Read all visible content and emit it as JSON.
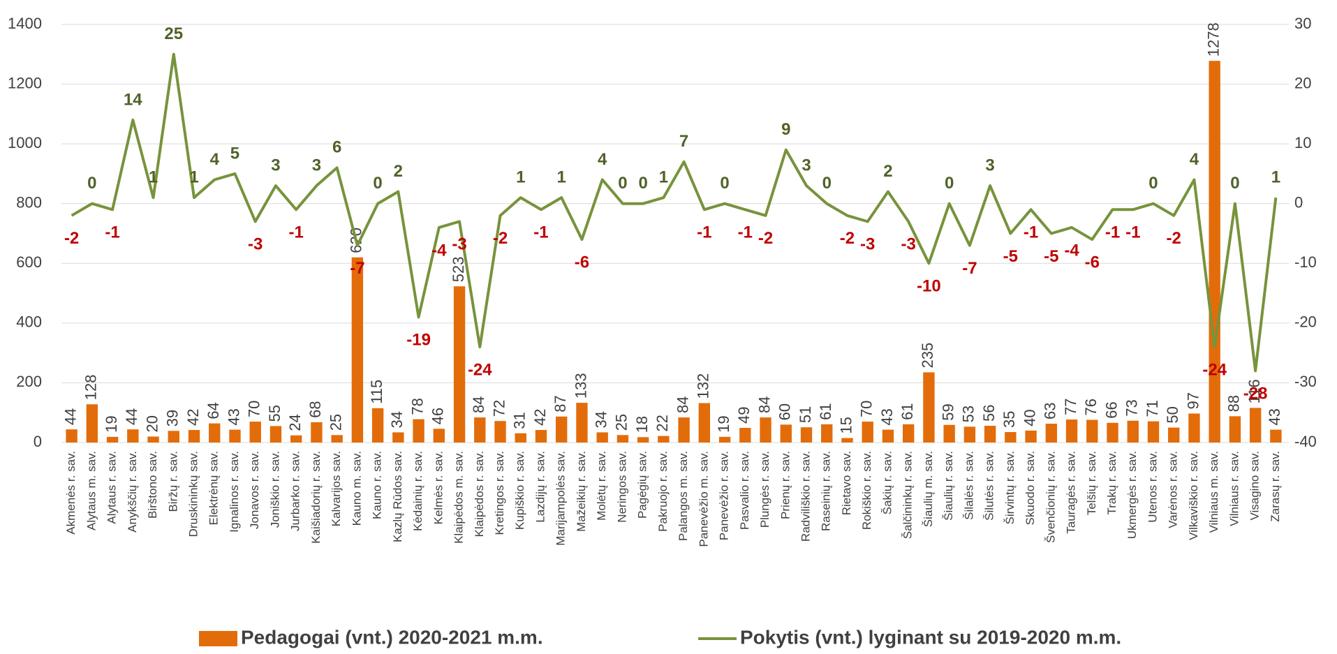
{
  "chart_data": {
    "type": "bar",
    "categories": [
      "Akmenės r. sav.",
      "Alytaus m. sav.",
      "Alytaus r. sav.",
      "Anykščių r. sav.",
      "Birštono sav.",
      "Biržų r. sav.",
      "Druskininkų sav.",
      "Elektrėnų sav.",
      "Ignalinos r. sav.",
      "Jonavos r. sav.",
      "Joniškio r. sav.",
      "Jurbarko r. sav.",
      "Kaišiadorių r. sav.",
      "Kalvarijos sav.",
      "Kauno m. sav.",
      "Kauno r. sav.",
      "Kazlų Rūdos sav.",
      "Kėdainių r. sav.",
      "Kelmės r. sav.",
      "Klaipėdos m. sav.",
      "Klaipėdos r. sav.",
      "Kretingos r. sav.",
      "Kupiškio r. sav.",
      "Lazdijų r. sav.",
      "Marijampolės sav.",
      "Mažeikių r. sav.",
      "Molėtų r. sav.",
      "Neringos sav.",
      "Pagėgių sav.",
      "Pakruojo r. sav.",
      "Palangos m. sav.",
      "Panevėžio m. sav.",
      "Panevėžio r. sav.",
      "Pasvalio r. sav.",
      "Plungės r. sav.",
      "Prienų r. sav.",
      "Radviliškio r. sav.",
      "Raseinių r. sav.",
      "Rietavo sav.",
      "Rokiškio r. sav.",
      "Šakių r. sav.",
      "Šalčininkų r. sav.",
      "Šiaulių m. sav.",
      "Šiaulių r. sav.",
      "Šilalės r. sav.",
      "Šilutės r. sav.",
      "Širvintų r. sav.",
      "Skuodo r. sav.",
      "Švenčionių r. sav.",
      "Tauragės r. sav.",
      "Telšių r. sav.",
      "Trakų r. sav.",
      "Ukmergės r. sav.",
      "Utenos r. sav.",
      "Varėnos r. sav.",
      "Vilkaviškio r. sav.",
      "Vilniaus m. sav.",
      "Vilniaus r. sav.",
      "Visagino sav.",
      "Zarasų r. sav."
    ],
    "series": [
      {
        "name": "Pedagogai (vnt.) 2020-2021 m.m.",
        "type": "bar",
        "color": "#e36c0a",
        "values": [
          44,
          128,
          19,
          44,
          20,
          39,
          42,
          64,
          43,
          70,
          55,
          24,
          68,
          25,
          620,
          115,
          34,
          78,
          46,
          523,
          84,
          72,
          31,
          42,
          87,
          133,
          34,
          25,
          18,
          22,
          84,
          132,
          19,
          49,
          84,
          60,
          51,
          61,
          15,
          70,
          43,
          61,
          235,
          59,
          53,
          56,
          35,
          40,
          63,
          77,
          76,
          66,
          73,
          71,
          50,
          97,
          1278,
          88,
          116,
          43
        ]
      },
      {
        "name": "Pokytis (vnt.) lyginant su 2019-2020 m.m.",
        "type": "line",
        "axis": "y2",
        "color": "#77933c",
        "values": [
          -2,
          0,
          -1,
          14,
          1,
          25,
          1,
          4,
          5,
          -3,
          3,
          -1,
          3,
          6,
          -7,
          0,
          2,
          -19,
          -4,
          -3,
          -24,
          -2,
          1,
          -1,
          1,
          -6,
          4,
          0,
          0,
          1,
          7,
          -1,
          0,
          -1,
          -2,
          9,
          3,
          0,
          -2,
          -3,
          2,
          -3,
          -10,
          0,
          -7,
          3,
          -5,
          -1,
          -5,
          -4,
          -6,
          -1,
          -1,
          0,
          -2,
          4,
          -24,
          0,
          -28,
          1
        ]
      }
    ],
    "label_colors": {
      "positive": "#4f6228",
      "negative": "#c00000"
    },
    "ylim": [
      0,
      1400
    ],
    "yticks": [
      0,
      200,
      400,
      600,
      800,
      1000,
      1200,
      1400
    ],
    "y2lim": [
      -40,
      30
    ],
    "y2ticks": [
      -40,
      -30,
      -20,
      -10,
      0,
      10,
      20,
      30
    ],
    "grid": true,
    "legend": "bottom"
  }
}
